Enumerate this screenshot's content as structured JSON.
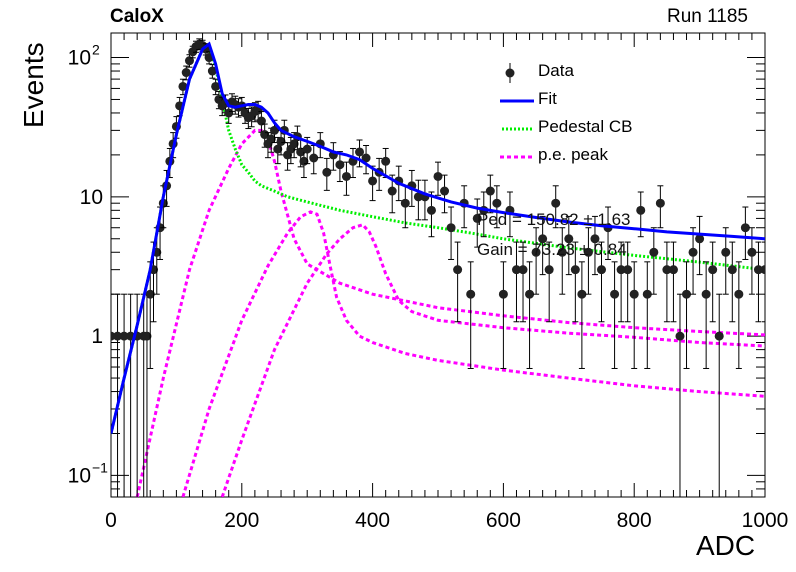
{
  "header": {
    "experiment": "CaloX",
    "run_label": "Run 1185"
  },
  "chart_data": {
    "type": "scatter",
    "title": "",
    "xlabel": "ADC",
    "ylabel": "Events",
    "xlim": [
      0,
      1000
    ],
    "ylim": [
      0.07,
      150
    ],
    "yscale": "log",
    "xticks": [
      "0",
      "200",
      "400",
      "600",
      "800",
      "1000"
    ],
    "yticks": [
      {
        "value": 0.1,
        "base": "10",
        "exp": "−1"
      },
      {
        "value": 1,
        "base": "1",
        "exp": ""
      },
      {
        "value": 10,
        "base": "10",
        "exp": ""
      },
      {
        "value": 100,
        "base": "10",
        "exp": "2"
      }
    ],
    "legend_position": "top-right",
    "colors": {
      "data": "#000000",
      "fit": "#0000ff",
      "pedestal": "#00ee00",
      "pe": "#ff00ff"
    },
    "series": [
      {
        "name": "Data",
        "kind": "points-with-errors",
        "x": [
          0,
          10,
          20,
          30,
          40,
          50,
          55,
          60,
          65,
          70,
          75,
          80,
          85,
          90,
          95,
          100,
          105,
          110,
          115,
          120,
          125,
          130,
          135,
          140,
          145,
          150,
          155,
          160,
          165,
          170,
          175,
          180,
          185,
          190,
          195,
          200,
          205,
          210,
          215,
          220,
          225,
          230,
          235,
          240,
          245,
          250,
          255,
          260,
          265,
          270,
          275,
          280,
          285,
          290,
          295,
          300,
          310,
          320,
          330,
          340,
          350,
          360,
          370,
          380,
          390,
          400,
          410,
          420,
          430,
          440,
          450,
          460,
          470,
          480,
          490,
          500,
          510,
          520,
          530,
          540,
          550,
          560,
          570,
          580,
          590,
          600,
          610,
          620,
          630,
          640,
          650,
          660,
          670,
          680,
          690,
          700,
          710,
          720,
          730,
          740,
          750,
          760,
          770,
          780,
          790,
          800,
          810,
          820,
          830,
          840,
          850,
          860,
          870,
          880,
          890,
          900,
          910,
          920,
          930,
          940,
          950,
          960,
          970,
          980,
          990,
          1000
        ],
        "y": [
          1,
          1,
          1,
          1,
          1,
          1,
          1,
          2,
          3,
          4,
          6,
          9,
          12,
          18,
          24,
          32,
          45,
          62,
          78,
          95,
          110,
          120,
          125,
          122,
          115,
          100,
          80,
          62,
          50,
          45,
          47,
          40,
          48,
          46,
          44,
          45,
          40,
          37,
          38,
          41,
          42,
          35,
          28,
          24,
          26,
          30,
          22,
          25,
          30,
          20,
          22,
          24,
          27,
          21,
          18,
          22,
          19,
          24,
          15,
          20,
          17,
          14,
          18,
          21,
          19,
          13,
          15,
          18,
          11,
          13,
          9,
          12,
          10,
          10,
          8,
          14,
          11,
          6,
          3,
          9,
          2,
          7,
          8,
          11,
          9,
          2,
          8,
          3,
          3,
          2,
          4,
          5,
          3,
          9,
          4,
          5,
          3,
          2,
          4,
          5,
          3,
          6,
          2,
          3,
          3,
          2,
          8,
          2,
          4,
          9,
          3,
          3,
          1,
          2,
          4,
          5,
          2,
          3,
          1,
          4,
          3,
          2,
          6,
          4,
          3,
          3
        ]
      },
      {
        "name": "Fit",
        "kind": "line",
        "x": [
          0,
          20,
          40,
          60,
          80,
          100,
          120,
          140,
          150,
          160,
          170,
          180,
          190,
          200,
          210,
          220,
          230,
          240,
          250,
          260,
          280,
          300,
          320,
          340,
          360,
          380,
          400,
          440,
          480,
          520,
          560,
          600,
          650,
          700,
          750,
          800,
          850,
          900,
          950,
          1000
        ],
        "y": [
          0.2,
          0.5,
          1.2,
          3,
          10,
          28,
          70,
          115,
          125,
          90,
          55,
          45,
          44,
          45,
          46,
          46,
          44,
          40,
          34,
          30,
          27,
          25,
          23,
          21,
          20,
          18.5,
          16,
          12.5,
          10.5,
          9.2,
          8.3,
          7.7,
          7.1,
          6.6,
          6.2,
          5.9,
          5.6,
          5.4,
          5.2,
          5
        ]
      },
      {
        "name": "Pedestal CB",
        "kind": "dotted-line",
        "x": [
          0,
          20,
          40,
          60,
          80,
          100,
          120,
          140,
          150,
          160,
          170,
          180,
          190,
          200,
          210,
          220,
          230,
          250,
          270,
          300,
          350,
          400,
          450,
          500,
          550,
          600,
          700,
          800,
          900,
          1000
        ],
        "y": [
          0.2,
          0.5,
          1.2,
          3,
          10,
          28,
          70,
          115,
          120,
          85,
          50,
          30,
          22,
          17,
          15,
          13,
          12,
          11,
          10,
          9.2,
          8,
          7.2,
          6.5,
          6,
          5.5,
          5,
          4.3,
          3.8,
          3.4,
          3
        ]
      },
      {
        "name": "p.e. peak",
        "kind": "dotted-line",
        "curves": [
          {
            "x": [
              40,
              80,
              120,
              150,
              180,
              200,
              220,
              230,
              240,
              250,
              260,
              280,
              300,
              350,
              400,
              500,
              600,
              700,
              800,
              900,
              1000
            ],
            "y": [
              0.07,
              0.5,
              3,
              8,
              16,
              24,
              30,
              30,
              26,
              18,
              11,
              5,
              3.3,
              2.4,
              2,
              1.6,
              1.4,
              1.25,
              1.15,
              1.08,
              1.02
            ]
          },
          {
            "x": [
              110,
              150,
              200,
              240,
              270,
              290,
              305,
              315,
              325,
              335,
              345,
              360,
              380,
              400,
              450,
              500,
              600,
              700,
              800,
              900,
              1000
            ],
            "y": [
              0.07,
              0.3,
              1.3,
              3.2,
              5.5,
              7.2,
              7.8,
              7.5,
              5.5,
              3.2,
              1.9,
              1.3,
              1,
              0.9,
              0.75,
              0.67,
              0.57,
              0.5,
              0.44,
              0.4,
              0.37
            ]
          },
          {
            "x": [
              170,
              200,
              250,
              300,
              330,
              350,
              370,
              385,
              395,
              405,
              420,
              440,
              460,
              500,
              600,
              700,
              800,
              900,
              1000
            ],
            "y": [
              0.07,
              0.18,
              0.8,
              2.4,
              3.9,
              5,
              6,
              6.3,
              5.6,
              4.4,
              2.8,
              1.8,
              1.5,
              1.3,
              1.15,
              1.05,
              0.98,
              0.9,
              0.85
            ]
          }
        ]
      }
    ],
    "fit_results": [
      {
        "label": "Ped",
        "text": "Ped = 150.82 ± 1.63"
      },
      {
        "label": "Gain",
        "text": "Gain = 73.23 ± 0.84"
      }
    ]
  }
}
